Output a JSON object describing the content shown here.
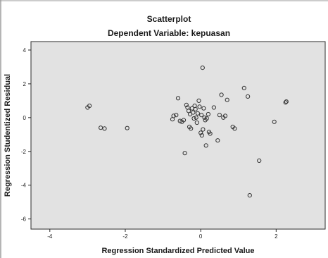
{
  "chart_data": {
    "type": "scatter",
    "title": "Scatterplot",
    "subtitle": "Dependent Variable: kepuasan",
    "xlabel": "Regression Standardized Predicted Value",
    "ylabel": "Regression Studentized Residual",
    "xlim": [
      -4.5,
      3.3
    ],
    "ylim": [
      -6.6,
      4.5
    ],
    "xticks": [
      -4,
      -2,
      0,
      2
    ],
    "yticks": [
      4,
      2,
      0,
      -2,
      -4,
      -6
    ],
    "grid": false,
    "colors": {
      "plot_bg": "#e2e2e2",
      "marker": "#333333",
      "frame": "#2b2b2b"
    },
    "points": [
      [
        -3.0,
        0.6
      ],
      [
        -2.95,
        0.7
      ],
      [
        -2.65,
        -0.6
      ],
      [
        -2.55,
        -0.65
      ],
      [
        -1.95,
        -0.62
      ],
      [
        -0.75,
        -0.1
      ],
      [
        -0.72,
        0.1
      ],
      [
        -0.65,
        0.15
      ],
      [
        -0.6,
        1.15
      ],
      [
        -0.55,
        -0.2
      ],
      [
        -0.5,
        -0.25
      ],
      [
        -0.45,
        -0.15
      ],
      [
        -0.42,
        -2.1
      ],
      [
        -0.38,
        0.75
      ],
      [
        -0.35,
        0.6
      ],
      [
        -0.32,
        0.4
      ],
      [
        -0.3,
        -0.55
      ],
      [
        -0.28,
        0.2
      ],
      [
        -0.26,
        -0.65
      ],
      [
        -0.23,
        0.55
      ],
      [
        -0.2,
        0.3
      ],
      [
        -0.18,
        -0.05
      ],
      [
        -0.16,
        0.7
      ],
      [
        -0.14,
        0.5
      ],
      [
        -0.12,
        0.0
      ],
      [
        -0.1,
        -0.3
      ],
      [
        -0.08,
        0.25
      ],
      [
        -0.05,
        1.0
      ],
      [
        -0.03,
        0.65
      ],
      [
        0.0,
        -0.9
      ],
      [
        0.02,
        0.15
      ],
      [
        0.03,
        -1.05
      ],
      [
        0.05,
        2.95
      ],
      [
        0.06,
        -0.7
      ],
      [
        0.08,
        0.55
      ],
      [
        0.1,
        0.0
      ],
      [
        0.12,
        -0.15
      ],
      [
        0.14,
        -1.65
      ],
      [
        0.16,
        -0.05
      ],
      [
        0.2,
        0.2
      ],
      [
        0.22,
        -0.85
      ],
      [
        0.25,
        -0.95
      ],
      [
        0.35,
        0.6
      ],
      [
        0.45,
        -1.35
      ],
      [
        0.5,
        0.15
      ],
      [
        0.55,
        1.35
      ],
      [
        0.6,
        0.0
      ],
      [
        0.65,
        0.1
      ],
      [
        0.7,
        1.05
      ],
      [
        0.85,
        -0.55
      ],
      [
        0.9,
        -0.65
      ],
      [
        1.15,
        1.75
      ],
      [
        1.25,
        1.25
      ],
      [
        1.3,
        -4.6
      ],
      [
        1.55,
        -2.55
      ],
      [
        1.95,
        -0.25
      ],
      [
        2.25,
        0.9
      ],
      [
        2.27,
        0.95
      ]
    ]
  }
}
